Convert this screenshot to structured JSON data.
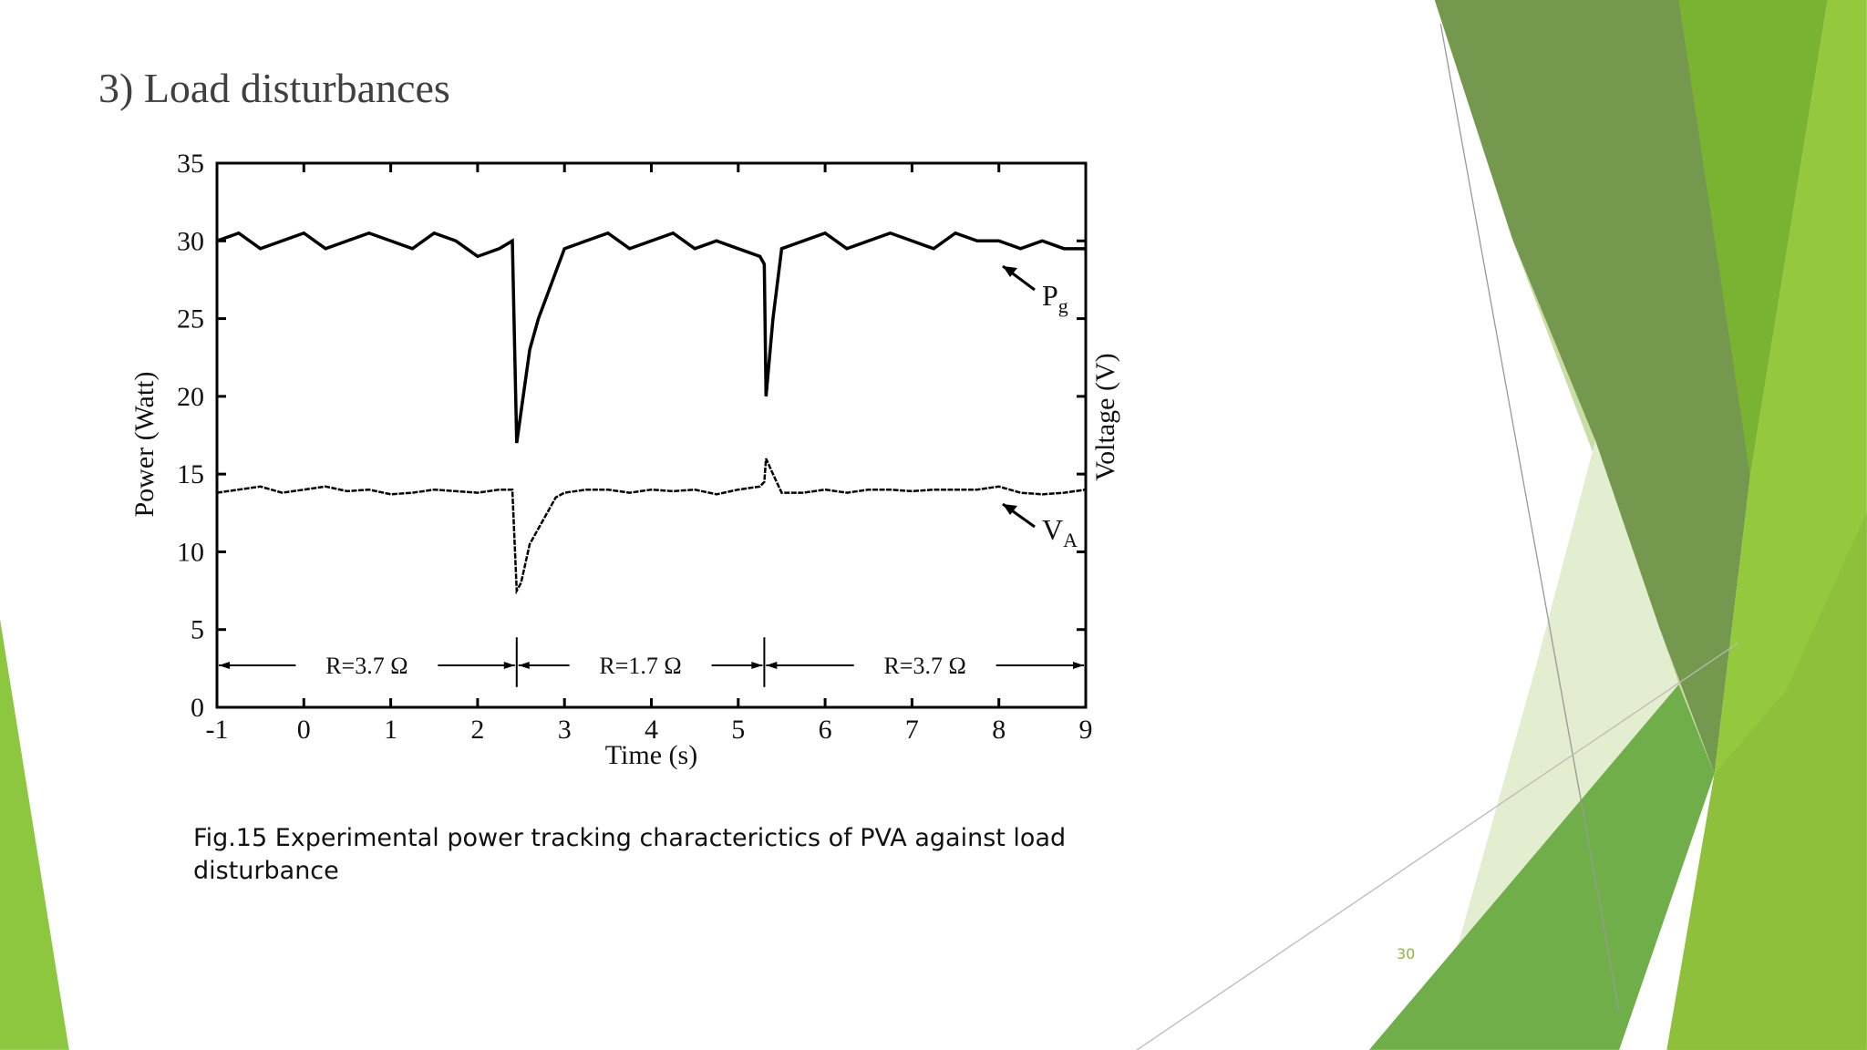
{
  "slide": {
    "title": "3)  Load disturbances",
    "caption": "Fig.15   Experimental power tracking characterictics of PVA against load disturbance",
    "page_number": "30"
  },
  "chart_data": {
    "type": "line",
    "xlabel": "Time (s)",
    "ylabel": "Power (Watt)",
    "y2label": "Voltage (V)",
    "x": [
      -1,
      -0.75,
      -0.5,
      -0.25,
      0,
      0.25,
      0.5,
      0.75,
      1,
      1.25,
      1.5,
      1.75,
      2,
      2.25,
      2.4,
      2.45,
      2.5,
      2.6,
      2.7,
      2.8,
      2.9,
      3,
      3.25,
      3.5,
      3.75,
      4,
      4.25,
      4.5,
      4.75,
      5,
      5.25,
      5.3,
      5.32,
      5.4,
      5.5,
      5.75,
      6,
      6.25,
      6.5,
      6.75,
      7,
      7.25,
      7.5,
      7.75,
      8,
      8.25,
      8.5,
      8.75,
      9
    ],
    "series": [
      {
        "name": "Pg",
        "color": "#000000",
        "values": [
          30,
          30.5,
          29.5,
          30,
          30.5,
          29.5,
          30,
          30.5,
          30,
          29.5,
          30.5,
          30,
          29,
          29.5,
          30,
          17,
          19,
          23,
          25,
          26.5,
          28,
          29.5,
          30,
          30.5,
          29.5,
          30,
          30.5,
          29.5,
          30,
          29.5,
          29,
          28.5,
          20,
          25,
          29.5,
          30,
          30.5,
          29.5,
          30,
          30.5,
          30,
          29.5,
          30.5,
          30,
          30,
          29.5,
          30,
          29.5,
          29.5
        ]
      },
      {
        "name": "VA",
        "color": "#000000",
        "values": [
          13.8,
          14,
          14.2,
          13.8,
          14,
          14.2,
          13.9,
          14,
          13.7,
          13.8,
          14,
          13.9,
          13.8,
          14,
          14,
          7.5,
          8,
          10.5,
          11.5,
          12.5,
          13.5,
          13.8,
          14,
          14,
          13.8,
          14,
          13.9,
          14,
          13.7,
          14,
          14.2,
          14.5,
          16,
          15,
          13.8,
          13.8,
          14,
          13.8,
          14,
          14,
          13.9,
          14,
          14,
          14,
          14.2,
          13.8,
          13.7,
          13.8,
          14
        ]
      }
    ],
    "annotations": [
      {
        "text": "P",
        "subscript": "g"
      },
      {
        "text": "V",
        "subscript": "A"
      }
    ],
    "regions": [
      {
        "label": "R=3.7 Ω",
        "from": -1,
        "to": 2.45
      },
      {
        "label": "R=1.7 Ω",
        "from": 2.45,
        "to": 5.3
      },
      {
        "label": "R=3.7 Ω",
        "from": 5.3,
        "to": 9
      }
    ],
    "xlim": [
      -1,
      9
    ],
    "xticks": [
      -1,
      0,
      1,
      2,
      3,
      4,
      5,
      6,
      7,
      8,
      9
    ],
    "ylim": [
      0,
      35
    ],
    "yticks": [
      0,
      5,
      10,
      15,
      20,
      25,
      30,
      35
    ]
  }
}
